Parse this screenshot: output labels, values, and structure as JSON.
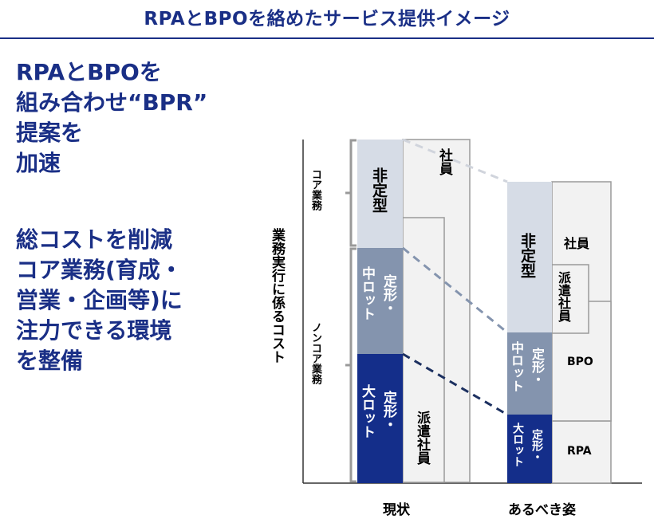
{
  "header": {
    "title": "RPAとBPOを絡めたサービス提供イメージ"
  },
  "message": {
    "block1": [
      "RPAとBPOを",
      "組み合わせ“BPR”",
      "提案を",
      "加速"
    ],
    "block2": [
      "総コストを削減",
      "コア業務(育成・",
      "営業・企画等)に",
      "注力できる環境",
      "を整備"
    ]
  },
  "diagram": {
    "y_axis_label": "業務実行に係るコスト",
    "bracket_core": "コア業務",
    "bracket_noncore": "ノンコア業務",
    "current": {
      "label": "現状",
      "non_routine": "非定型",
      "mid_lot": "中ロット",
      "mid_routine": "定形・",
      "large_lot": "大ロット",
      "large_routine": "定形・",
      "employee": "社員",
      "dispatch": "派遣社員"
    },
    "ideal": {
      "label": "あるべき姿",
      "non_routine": "非定型",
      "mid_lot": "中ロット",
      "mid_routine": "定形・",
      "large_lot": "大ロット",
      "large_routine": "定形・",
      "employee": "社員",
      "dispatch": "派遣社員",
      "bpo": "BPO",
      "rpa": "RPA"
    },
    "colors": {
      "title": "#1a2f86",
      "non_routine": "#d6dce6",
      "mid": "#8494ae",
      "large": "#142e8a",
      "box_fill": "#f2f2f2",
      "box_stroke": "#9a9a9a"
    }
  }
}
